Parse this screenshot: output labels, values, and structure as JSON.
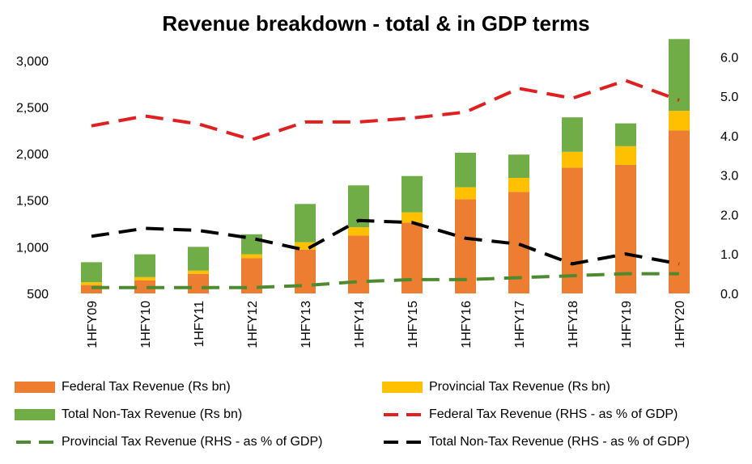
{
  "chart_data": {
    "type": "bar",
    "title": "Revenue breakdown - total & in GDP terms",
    "categories": [
      "1HFY09",
      "1HFY10",
      "1HFY11",
      "1HFY12",
      "1HFY13",
      "1HFY14",
      "1HFY15",
      "1HFY16",
      "1HFY17",
      "1HFY18",
      "1HFY19",
      "1HFY20"
    ],
    "left_axis": {
      "ylim": [
        500,
        3250
      ],
      "ticks": [
        "500",
        "1,000",
        "1,500",
        "2,000",
        "2,500",
        "3,000"
      ]
    },
    "right_axis": {
      "ylim": [
        0,
        6.5
      ],
      "ticks": [
        "0.0",
        "1.0",
        "2.0",
        "3.0",
        "4.0",
        "5.0",
        "6.0"
      ]
    },
    "stacked_series": [
      {
        "name": "Federal Tax Revenue (Rs bn)",
        "color": "#ED7D31",
        "values": [
          590,
          640,
          710,
          880,
          970,
          1120,
          1260,
          1510,
          1590,
          1850,
          1880,
          2250
        ]
      },
      {
        "name": "Provincial Tax Revenue (Rs bn)",
        "color": "#FFC000",
        "values": [
          30,
          35,
          35,
          40,
          80,
          90,
          110,
          130,
          150,
          170,
          200,
          210
        ]
      },
      {
        "name": "Total Non-Tax Revenue (Rs bn)",
        "color": "#70AD47",
        "values": [
          215,
          245,
          255,
          215,
          410,
          450,
          390,
          370,
          250,
          370,
          245,
          770
        ]
      }
    ],
    "line_series": [
      {
        "name": "Federal Tax Revenue (RHS - as % of GDP)",
        "color": "#E02020",
        "values": [
          4.25,
          4.5,
          4.3,
          3.9,
          4.35,
          4.35,
          4.45,
          4.6,
          5.2,
          4.95,
          5.4,
          4.9
        ]
      },
      {
        "name": "Provincial Tax Revenue (RHS - as % of GDP)",
        "color": "#4E8A2F",
        "values": [
          0.15,
          0.15,
          0.15,
          0.15,
          0.2,
          0.3,
          0.35,
          0.35,
          0.4,
          0.45,
          0.5,
          0.5
        ]
      },
      {
        "name": "Total Non-Tax Revenue (RHS - as % of GDP)",
        "color": "#000000",
        "values": [
          1.45,
          1.65,
          1.6,
          1.4,
          1.1,
          1.85,
          1.8,
          1.4,
          1.25,
          0.75,
          1.0,
          0.75
        ]
      }
    ],
    "legend": [
      {
        "label": "Federal Tax Revenue (Rs bn)",
        "kind": "bar",
        "color": "#ED7D31"
      },
      {
        "label": "Provincial Tax Revenue (Rs bn)",
        "kind": "bar",
        "color": "#FFC000"
      },
      {
        "label": "Total Non-Tax Revenue (Rs bn)",
        "kind": "bar",
        "color": "#70AD47"
      },
      {
        "label": "Federal Tax Revenue (RHS - as % of GDP)",
        "kind": "line",
        "color": "#E02020"
      },
      {
        "label": "Provincial Tax Revenue (RHS - as % of GDP)",
        "kind": "line",
        "color": "#4E8A2F"
      },
      {
        "label": "Total Non-Tax Revenue (RHS - as % of GDP)",
        "kind": "line",
        "color": "#000000"
      }
    ],
    "grid": false,
    "legend_position": "bottom"
  }
}
